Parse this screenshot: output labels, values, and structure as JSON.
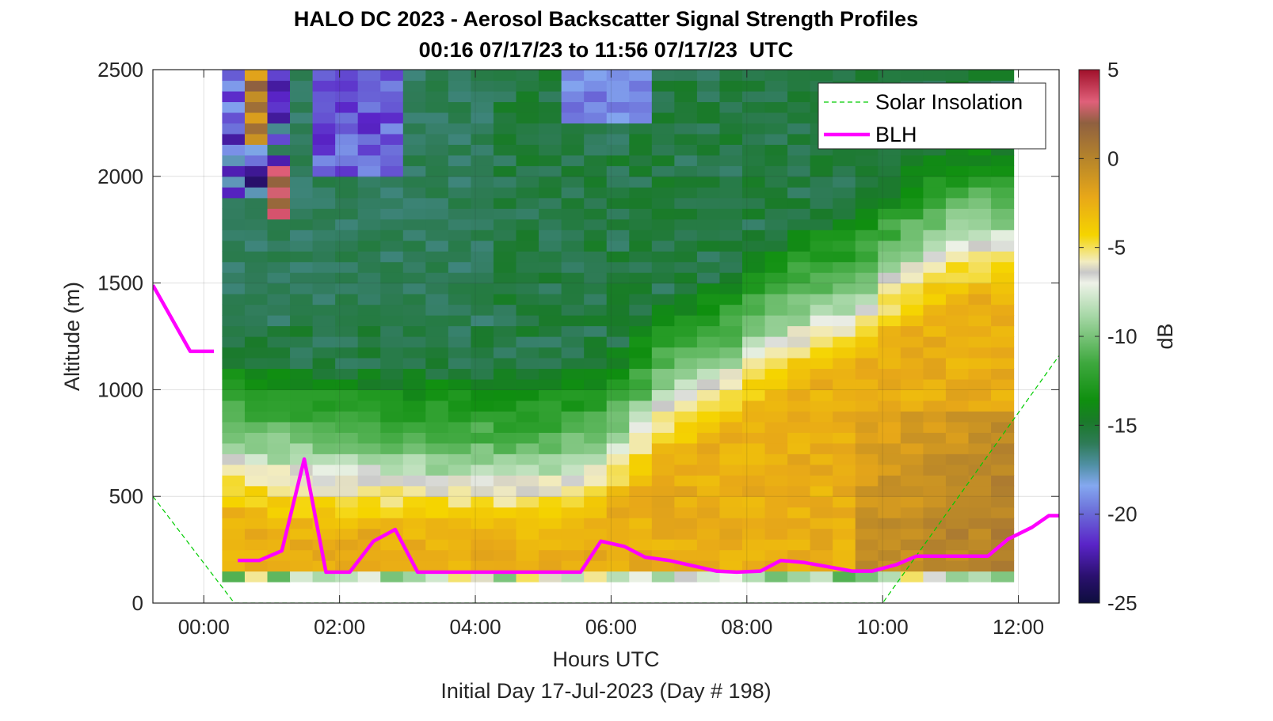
{
  "chart_data": {
    "type": "heatmap",
    "title": "HALO DC 2023 - Aerosol Backscatter Signal Strength Profiles",
    "subtitle": "00:16 07/17/23 to 11:56 07/17/23  UTC",
    "xlabel": "Hours UTC",
    "xlabel2": "Initial Day 17-Jul-2023 (Day # 198)",
    "ylabel": "Altitude (m)",
    "colorbar_label": "dB",
    "xlim": [
      -0.75,
      12.6
    ],
    "ylim": [
      0,
      2500
    ],
    "x_ticks": [
      0,
      2,
      4,
      6,
      8,
      10,
      12
    ],
    "x_tick_labels": [
      "00:00",
      "02:00",
      "04:00",
      "06:00",
      "08:00",
      "10:00",
      "12:00"
    ],
    "y_ticks": [
      0,
      500,
      1000,
      1500,
      2000,
      2500
    ],
    "y_tick_labels": [
      "0",
      "500",
      "1000",
      "1500",
      "2000",
      "2500"
    ],
    "clim": [
      -25,
      5
    ],
    "colorbar_ticks": [
      5,
      0,
      -5,
      -10,
      -15,
      -20,
      -25
    ],
    "colorbar_tick_labels": [
      "5",
      "0",
      "-5",
      "-10",
      "-15",
      "-20",
      "-25"
    ],
    "grid": true,
    "legend_position": "top-right",
    "heatmap_extent": {
      "x": [
        0.27,
        11.93
      ],
      "y": [
        100,
        2500
      ]
    },
    "heatmap_bins": {
      "columns": 35,
      "rows": 48
    },
    "series": [
      {
        "name": "Solar Insolation",
        "style": "dashed",
        "color": "#00cc00",
        "x": [
          -0.75,
          0.45,
          10.0,
          12.6
        ],
        "y": [
          500,
          0,
          0,
          1160
        ]
      },
      {
        "name": "BLH",
        "style": "solid",
        "color": "#ff00ff",
        "segments": [
          {
            "x": [
              -0.75,
              -0.2,
              0.15
            ],
            "y": [
              1490,
              1180,
              1180
            ]
          },
          {
            "x": [
              0.5,
              0.82,
              1.15,
              1.48,
              1.8,
              2.15,
              2.5,
              2.82,
              3.15,
              3.5,
              3.85,
              4.2,
              4.5,
              4.85,
              5.2,
              5.55,
              5.85,
              6.2,
              6.5,
              6.85,
              7.2,
              7.55,
              7.85,
              8.2,
              8.5,
              8.85,
              9.2,
              9.55,
              9.85,
              10.2,
              10.5,
              10.85,
              11.2,
              11.55,
              11.85,
              12.2,
              12.45,
              12.6
            ],
            "y": [
              200,
              200,
              245,
              675,
              145,
              145,
              290,
              345,
              145,
              145,
              145,
              145,
              145,
              145,
              145,
              145,
              290,
              265,
              215,
              200,
              175,
              150,
              145,
              150,
              200,
              190,
              170,
              150,
              150,
              180,
              220,
              220,
              220,
              220,
              300,
              355,
              410,
              410
            ]
          }
        ]
      }
    ]
  }
}
